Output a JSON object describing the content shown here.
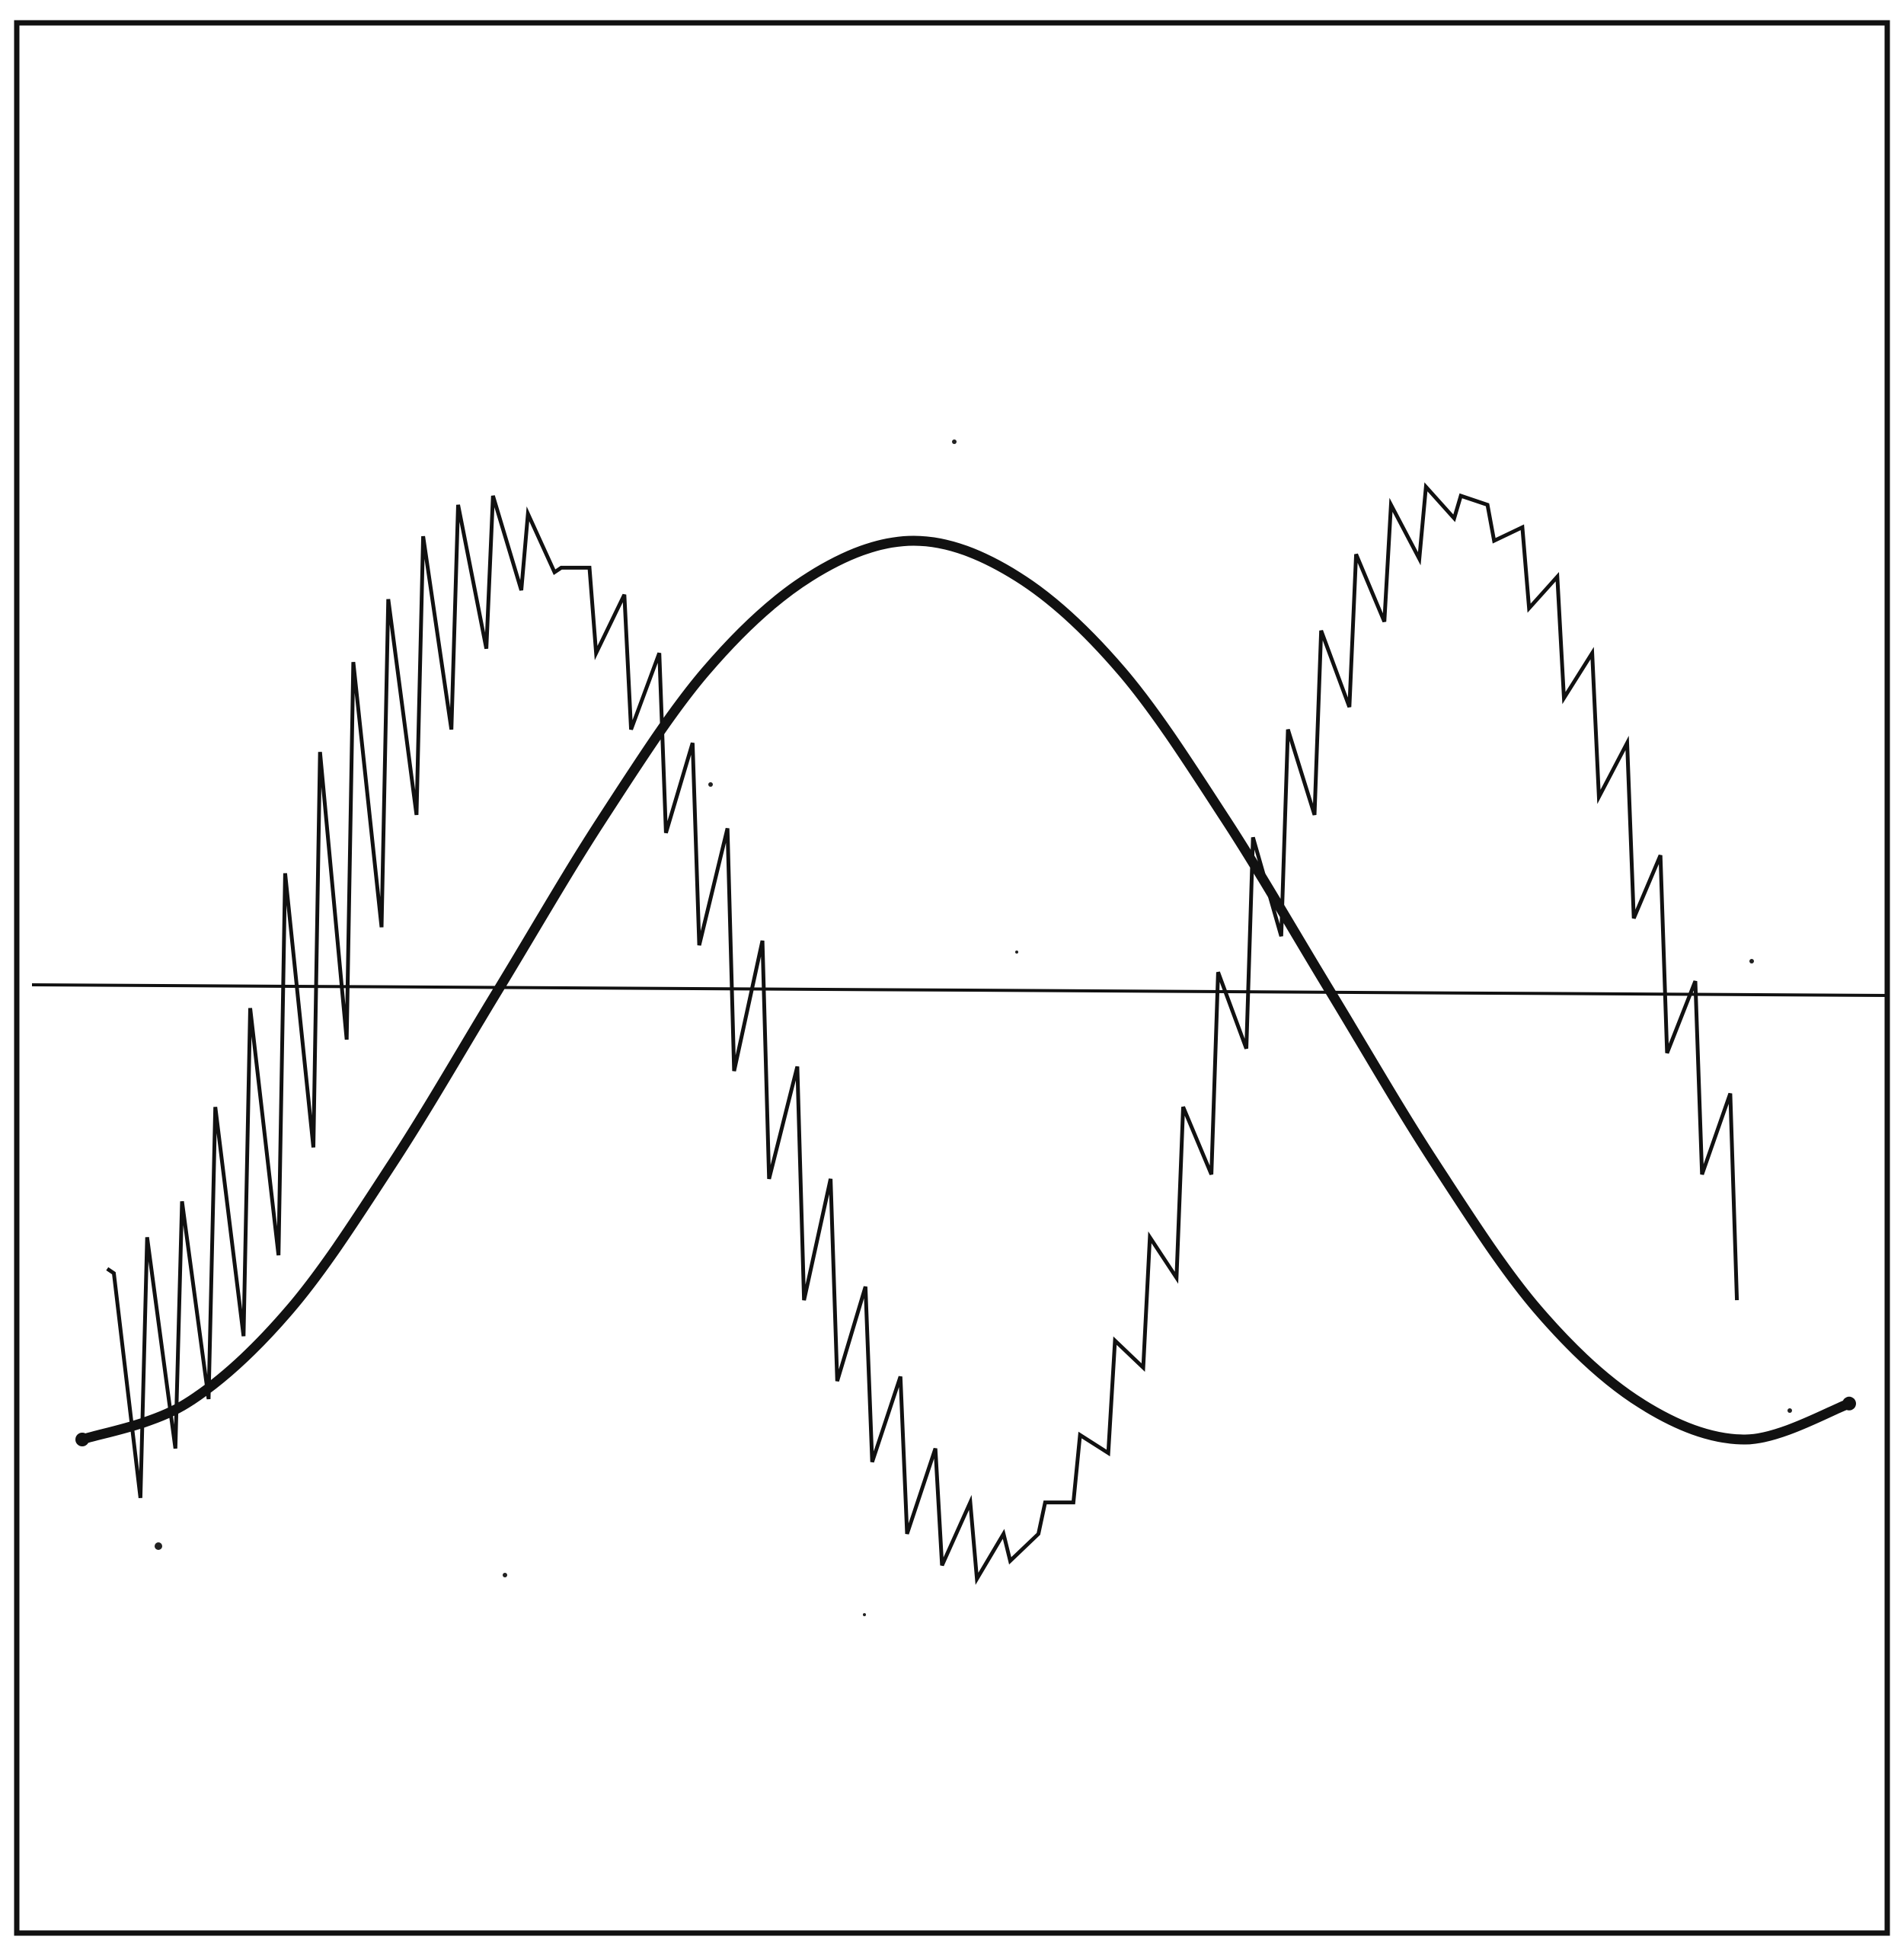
{
  "chart_data": {
    "type": "line",
    "title": "",
    "xlabel": "",
    "ylabel": "",
    "axes_visible": false,
    "grid": false,
    "legend": "none",
    "xlim": [
      0,
      1.0625
    ],
    "ylim": [
      -1.8,
      2.2
    ],
    "x_unit": "cycles",
    "baseline": 0,
    "series": [
      {
        "style": "thick smooth curve",
        "x": [
          0,
          0.0625,
          0.125,
          0.1875,
          0.25,
          0.3125,
          0.375,
          0.4375,
          0.5,
          0.5625,
          0.625,
          0.6875,
          0.75,
          0.8125,
          0.875,
          0.9375,
          1.0,
          1.0625
        ],
        "values": [
          -1.0,
          -0.92,
          -0.71,
          -0.38,
          0.0,
          0.38,
          0.71,
          0.92,
          1.0,
          0.92,
          0.71,
          0.38,
          0.0,
          -0.38,
          -0.71,
          -0.92,
          -1.0,
          -0.92
        ]
      },
      {
        "style": "thin sawtooth trace",
        "x": [
          0.015,
          0.019,
          0.035,
          0.039,
          0.056,
          0.06,
          0.076,
          0.08,
          0.097,
          0.101,
          0.118,
          0.122,
          0.139,
          0.143,
          0.159,
          0.163,
          0.18,
          0.184,
          0.201,
          0.205,
          0.222,
          0.226,
          0.243,
          0.247,
          0.264,
          0.268,
          0.284,
          0.288,
          0.305,
          0.309,
          0.326,
          0.33,
          0.347,
          0.351,
          0.367,
          0.371,
          0.388,
          0.392,
          0.409,
          0.413,
          0.43,
          0.434,
          0.45,
          0.454,
          0.471,
          0.475,
          0.492,
          0.496,
          0.513,
          0.517,
          0.534,
          0.538,
          0.554,
          0.558,
          0.575,
          0.579,
          0.596,
          0.6,
          0.617,
          0.621,
          0.638,
          0.642,
          0.658,
          0.662,
          0.679,
          0.683,
          0.7,
          0.704,
          0.721,
          0.725,
          0.741,
          0.745,
          0.762,
          0.766,
          0.783,
          0.787,
          0.804,
          0.808,
          0.825,
          0.829,
          0.845,
          0.849,
          0.866,
          0.87,
          0.887,
          0.891,
          0.908,
          0.912,
          0.929,
          0.933,
          0.949,
          0.953,
          0.97,
          0.974,
          0.991,
          0.995
        ],
        "values": [
          -0.62,
          -0.63,
          -1.13,
          -0.55,
          -1.02,
          -0.47,
          -0.91,
          -0.26,
          -0.77,
          -0.04,
          -0.59,
          0.26,
          -0.35,
          0.53,
          -0.11,
          0.73,
          0.14,
          0.87,
          0.39,
          1.01,
          0.58,
          1.08,
          0.76,
          1.1,
          0.89,
          1.06,
          0.93,
          0.94,
          0.94,
          0.75,
          0.88,
          0.58,
          0.75,
          0.35,
          0.55,
          0.1,
          0.36,
          -0.18,
          0.11,
          -0.42,
          -0.17,
          -0.69,
          -0.42,
          -0.87,
          -0.66,
          -1.05,
          -0.86,
          -1.21,
          -1.02,
          -1.28,
          -1.14,
          -1.31,
          -1.21,
          -1.27,
          -1.21,
          -1.14,
          -1.14,
          -0.99,
          -1.03,
          -0.78,
          -0.84,
          -0.55,
          -0.64,
          -0.26,
          -0.41,
          0.04,
          -0.13,
          0.34,
          0.12,
          0.58,
          0.39,
          0.8,
          0.63,
          0.97,
          0.82,
          1.08,
          0.96,
          1.12,
          1.05,
          1.1,
          1.08,
          1.0,
          1.03,
          0.85,
          0.92,
          0.65,
          0.75,
          0.43,
          0.55,
          0.16,
          0.3,
          -0.14,
          0.02,
          -0.41,
          -0.23,
          -0.69
        ]
      }
    ]
  }
}
